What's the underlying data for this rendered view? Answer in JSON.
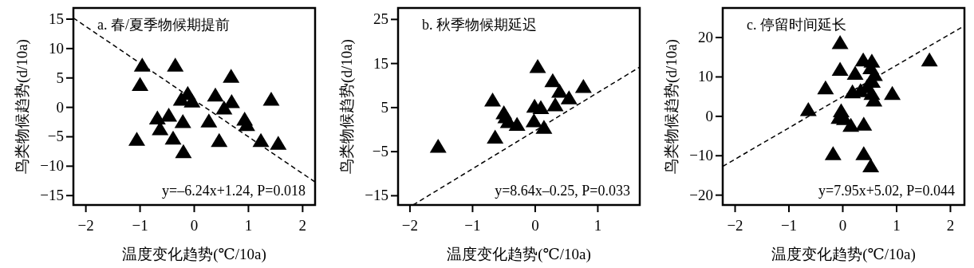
{
  "chart_data": [
    {
      "type": "scatter",
      "title": "a. 春/夏季物候期提前",
      "xlabel": "温度变化趋势(℃/10a)",
      "ylabel": "鸟类物候趋势(d/10a)",
      "xlim": [
        -2.23,
        2.23
      ],
      "ylim": [
        -16.6,
        16.9
      ],
      "xticks": [
        -2,
        -1,
        0,
        1,
        2
      ],
      "yticks": [
        -15,
        -10,
        -5,
        0,
        5,
        10,
        15
      ],
      "annotations": [
        "y=–6.24x+1.24, P=0.018"
      ],
      "series": [
        {
          "marker": "triangle",
          "color": "#000000",
          "x": [
            -0.96,
            -1.0,
            -0.35,
            0.68,
            -0.12,
            -0.24,
            -0.04,
            0.39,
            0.69,
            1.42,
            0.55,
            -0.68,
            -0.47,
            -0.21,
            0.27,
            0.93,
            0.97,
            -0.63,
            -1.06,
            -0.39,
            0.46,
            1.23,
            1.55,
            -0.2
          ],
          "values": [
            7.1,
            3.8,
            7.1,
            5.2,
            2.3,
            1.3,
            1.0,
            2.0,
            0.9,
            1.3,
            -0.2,
            -1.9,
            -1.4,
            -2.5,
            -2.4,
            -2.1,
            -3.0,
            -3.7,
            -5.5,
            -5.3,
            -5.7,
            -5.7,
            -6.2,
            -7.6
          ]
        },
        {
          "type": "line",
          "marker": "none",
          "color": "#000000",
          "line_style": "dashed",
          "x": [
            -2.23,
            2.23
          ],
          "values": [
            15.2,
            -12.7
          ]
        }
      ]
    },
    {
      "type": "scatter",
      "title": "b. 秋季物候期延迟",
      "xlabel": "温度变化趋势(℃/10a)",
      "ylabel": "鸟类物候趋势(d/10a)",
      "xlim": [
        -2.19,
        1.67
      ],
      "ylim": [
        -17.1,
        27.6
      ],
      "xticks": [
        -2,
        -1,
        0,
        1
      ],
      "yticks": [
        -15,
        -5,
        5,
        15,
        25
      ],
      "annotations": [
        "y=8.64x–0.25, P=0.033"
      ],
      "series": [
        {
          "marker": "triangle",
          "color": "#000000",
          "x": [
            -1.55,
            -0.68,
            -0.64,
            -0.5,
            -0.47,
            -0.43,
            -0.29,
            0.04,
            -0.01,
            0.09,
            -0.02,
            0.14,
            0.28,
            0.39,
            0.54,
            0.32,
            0.77
          ],
          "values": [
            -3.9,
            6.6,
            -1.8,
            3.7,
            2.8,
            1.7,
            1.1,
            14.2,
            5.2,
            4.9,
            1.9,
            0.4,
            11.0,
            8.6,
            7.1,
            5.5,
            9.7
          ]
        },
        {
          "type": "line",
          "marker": "none",
          "color": "#000000",
          "line_style": "dashed",
          "x": [
            -1.95,
            1.67
          ],
          "values": [
            -17.1,
            14.2
          ]
        }
      ]
    },
    {
      "type": "scatter",
      "title": "c. 停留时间延长",
      "xlabel": "温度变化趋势(℃/10a)",
      "ylabel": "鸟类物候趋势(d/10a)",
      "xlim": [
        -2.23,
        2.26
      ],
      "ylim": [
        -22.5,
        27.5
      ],
      "xticks": [
        -2,
        -1,
        0,
        1,
        2
      ],
      "yticks": [
        -20,
        -10,
        0,
        10,
        20
      ],
      "annotations": [
        "y=7.95x+5.02, P=0.044"
      ],
      "series": [
        {
          "marker": "triangle",
          "color": "#000000",
          "x": [
            -0.05,
            0.38,
            0.54,
            1.61,
            -0.05,
            0.23,
            0.52,
            0.59,
            0.55,
            -0.32,
            0.18,
            0.33,
            0.45,
            0.54,
            0.92,
            0.58,
            -0.64,
            -0.03,
            -0.07,
            0.03,
            0.15,
            0.39,
            -0.18,
            0.39,
            0.52
          ],
          "values": [
            18.6,
            14.2,
            13.9,
            14.2,
            11.8,
            10.8,
            12.2,
            10.5,
            8.8,
            7.1,
            6.1,
            6.4,
            7.4,
            5.7,
            5.7,
            4.0,
            1.6,
            1.3,
            -0.4,
            -0.7,
            -2.4,
            -2.1,
            -9.6,
            -9.6,
            -12.7
          ]
        },
        {
          "type": "line",
          "marker": "none",
          "color": "#000000",
          "line_style": "dashed",
          "x": [
            -2.23,
            2.26
          ],
          "values": [
            -12.7,
            23.0
          ]
        }
      ]
    }
  ]
}
